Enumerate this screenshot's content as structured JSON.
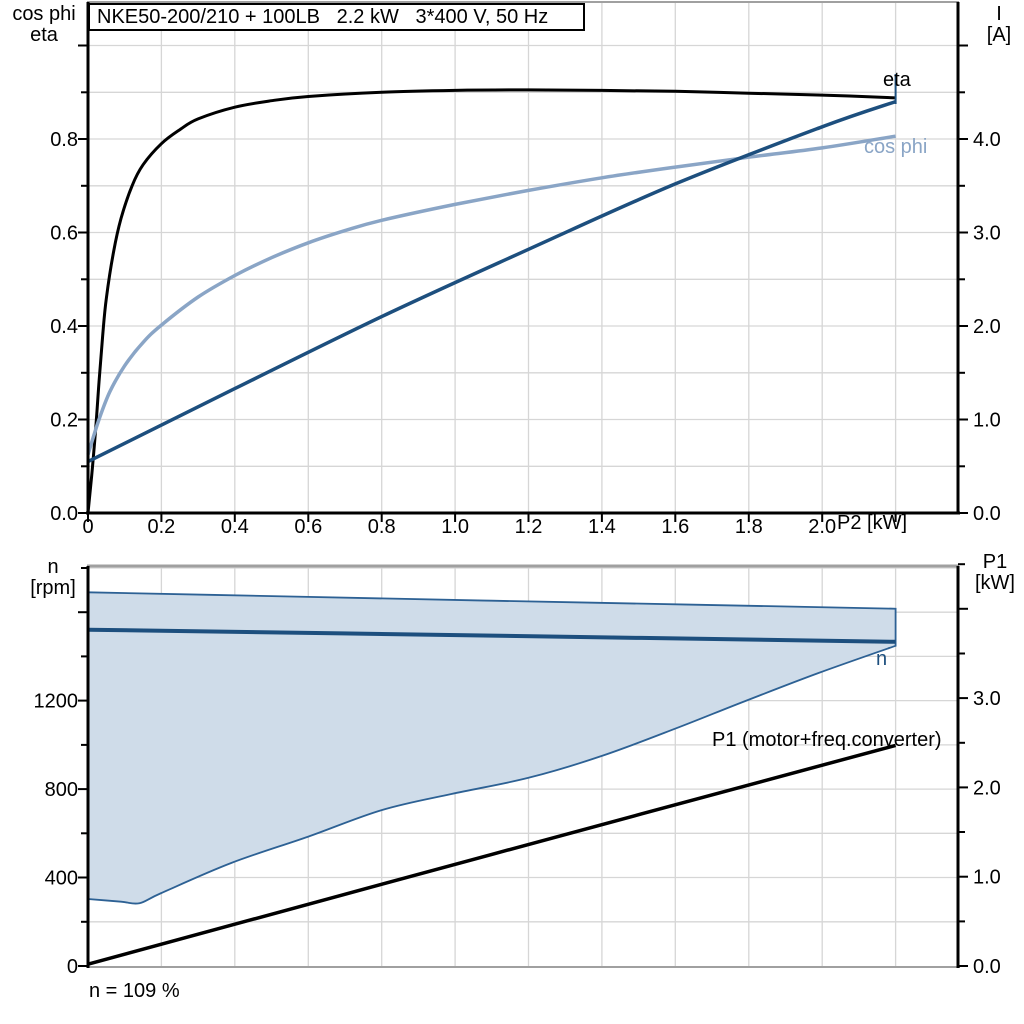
{
  "title_box": {
    "text": "NKE50-200/210 + 100LB   2.2 kW   3*400 V, 50 Hz"
  },
  "labels": {
    "top_left_axis_line1": "cos phi",
    "top_left_axis_line2": "eta",
    "top_right_axis_line1": "I",
    "top_right_axis_line2": "[A]",
    "bottom_left_axis_line1": "n",
    "bottom_left_axis_line2": "[rpm]",
    "bottom_right_axis_line1": "P1",
    "bottom_right_axis_line2": "[kW]",
    "x_axis_label": "P2 [kW]",
    "eta_curve": "eta",
    "cosphi_curve": "cos phi",
    "n_curve": "n",
    "p1_curve": "P1 (motor+freq.converter)",
    "footer": "n = 109 %"
  },
  "colors": {
    "black": "#000000",
    "navy": "#1d4f7e",
    "steel_blue": "#8aa5c6",
    "band_fill": "#cfdce9",
    "band_edge": "#2d6194",
    "grid": "#d6d6d6",
    "frame_gray": "#a0a0a0"
  },
  "chart_data": [
    {
      "type": "line",
      "panel": "top",
      "title": "NKE50-200/210 + 100LB   2.2 kW   3*400 V, 50 Hz",
      "xlabel": "P2 [kW]",
      "ylabel_left": "cos phi / eta",
      "ylabel_right": "I [A]",
      "xlim": [
        0,
        2.37
      ],
      "ylim_left": [
        0,
        1.091
      ],
      "ylim_right": [
        0,
        5.455
      ],
      "x_ticks": [
        0,
        0.2,
        0.4,
        0.6,
        0.8,
        1.0,
        1.2,
        1.4,
        1.6,
        1.8,
        2.0
      ],
      "y_ticks_left": [
        0.0,
        0.2,
        0.4,
        0.6,
        0.8
      ],
      "y_ticks_right": [
        0.0,
        1.0,
        2.0,
        3.0,
        4.0
      ],
      "grid": true,
      "legend_position": "inline-labels",
      "series": [
        {
          "name": "eta",
          "axis": "left",
          "color": "black",
          "width": 3,
          "points": [
            [
              0,
              0
            ],
            [
              0.01,
              0.08
            ],
            [
              0.02,
              0.17
            ],
            [
              0.03,
              0.28
            ],
            [
              0.04,
              0.38
            ],
            [
              0.05,
              0.46
            ],
            [
              0.07,
              0.56
            ],
            [
              0.09,
              0.63
            ],
            [
              0.12,
              0.7
            ],
            [
              0.15,
              0.745
            ],
            [
              0.2,
              0.79
            ],
            [
              0.25,
              0.82
            ],
            [
              0.3,
              0.843
            ],
            [
              0.4,
              0.868
            ],
            [
              0.5,
              0.882
            ],
            [
              0.6,
              0.891
            ],
            [
              0.8,
              0.9
            ],
            [
              1.0,
              0.904
            ],
            [
              1.2,
              0.905
            ],
            [
              1.4,
              0.904
            ],
            [
              1.6,
              0.902
            ],
            [
              1.8,
              0.898
            ],
            [
              2.0,
              0.894
            ],
            [
              2.2,
              0.888
            ]
          ]
        },
        {
          "name": "cos phi",
          "axis": "left",
          "color": "steel_blue",
          "width": 3.5,
          "points": [
            [
              0,
              0.125
            ],
            [
              0.03,
              0.2
            ],
            [
              0.06,
              0.26
            ],
            [
              0.1,
              0.315
            ],
            [
              0.15,
              0.365
            ],
            [
              0.2,
              0.402
            ],
            [
              0.3,
              0.462
            ],
            [
              0.4,
              0.508
            ],
            [
              0.5,
              0.546
            ],
            [
              0.6,
              0.578
            ],
            [
              0.7,
              0.604
            ],
            [
              0.8,
              0.626
            ],
            [
              1.0,
              0.66
            ],
            [
              1.2,
              0.69
            ],
            [
              1.4,
              0.717
            ],
            [
              1.6,
              0.74
            ],
            [
              1.8,
              0.761
            ],
            [
              2.0,
              0.781
            ],
            [
              2.2,
              0.806
            ]
          ]
        },
        {
          "name": "I",
          "axis": "right",
          "color": "navy",
          "width": 3.5,
          "points": [
            [
              0,
              0.55
            ],
            [
              0.4,
              1.33
            ],
            [
              0.8,
              2.1
            ],
            [
              1.2,
              2.82
            ],
            [
              1.6,
              3.52
            ],
            [
              2.0,
              4.13
            ],
            [
              2.2,
              4.4
            ]
          ]
        }
      ],
      "end_marker_x": 2.2
    },
    {
      "type": "area",
      "panel": "bottom",
      "xlabel": "",
      "ylabel_left": "n [rpm]",
      "ylabel_right": "P1 [kW]",
      "xlim": [
        0,
        2.37
      ],
      "ylim_left": [
        0,
        1810
      ],
      "ylim_right": [
        0,
        4.525
      ],
      "x_ticks": [],
      "y_ticks_left": [
        0,
        400,
        800,
        1200
      ],
      "y_ticks_right": [
        0.0,
        1.0,
        2.0,
        3.0
      ],
      "grid": true,
      "band": {
        "name": "n operating range",
        "upper": [
          [
            0,
            1690
          ],
          [
            0.55,
            1671
          ],
          [
            1.1,
            1652
          ],
          [
            1.65,
            1634
          ],
          [
            2.2,
            1616
          ]
        ],
        "lower": [
          [
            0,
            303
          ],
          [
            0.09,
            291
          ],
          [
            0.14,
            284
          ],
          [
            0.2,
            330
          ],
          [
            0.39,
            466
          ],
          [
            0.6,
            585
          ],
          [
            0.8,
            705
          ],
          [
            0.99,
            778
          ],
          [
            1.2,
            851
          ],
          [
            1.4,
            950
          ],
          [
            1.61,
            1080
          ],
          [
            1.79,
            1198
          ],
          [
            1.99,
            1325
          ],
          [
            2.2,
            1448
          ]
        ]
      },
      "series": [
        {
          "name": "n",
          "axis": "left",
          "color": "navy",
          "width": 4,
          "points": [
            [
              0,
              1521
            ],
            [
              1.1,
              1494
            ],
            [
              2.2,
              1466
            ]
          ]
        },
        {
          "name": "P1 (motor+freq.converter)",
          "axis": "right",
          "color": "black",
          "width": 3.5,
          "points": [
            [
              0,
              0.02
            ],
            [
              1.1,
              1.25
            ],
            [
              2.2,
              2.47
            ]
          ]
        }
      ],
      "footnote": "n = 109 %"
    }
  ]
}
